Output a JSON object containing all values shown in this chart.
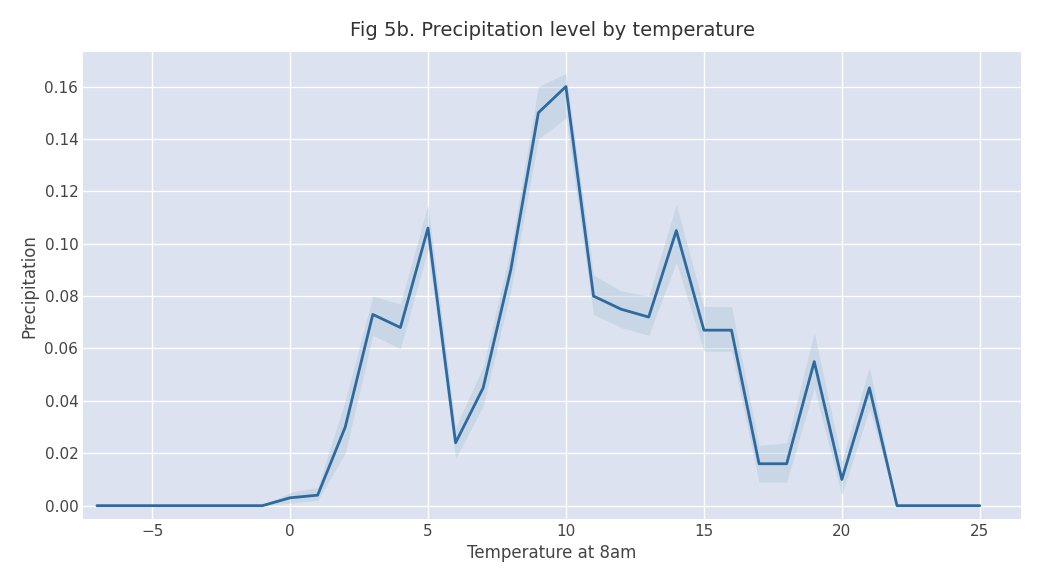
{
  "title": "Fig 5b. Precipitation level by temperature",
  "xlabel": "Temperature at 8am",
  "ylabel": "Precipitation",
  "figure_bg": "#ffffff",
  "axes_bg": "#dce2ef",
  "line_color": "#2d6a9f",
  "fill_color": "#aec6d8",
  "x": [
    -7,
    -6,
    -5,
    -4,
    -3,
    -2,
    -1,
    0,
    1,
    2,
    3,
    4,
    5,
    6,
    7,
    8,
    9,
    10,
    11,
    12,
    13,
    14,
    15,
    16,
    17,
    18,
    19,
    20,
    21,
    22,
    23,
    24,
    25
  ],
  "y": [
    0.0,
    0.0,
    0.0,
    0.0,
    0.0,
    0.0,
    0.0,
    0.003,
    0.004,
    0.03,
    0.073,
    0.068,
    0.106,
    0.024,
    0.045,
    0.09,
    0.15,
    0.16,
    0.08,
    0.075,
    0.072,
    0.105,
    0.067,
    0.067,
    0.016,
    0.016,
    0.055,
    0.01,
    0.045,
    0.0,
    0.0,
    0.0,
    0.0
  ],
  "y_lower": [
    0.0,
    0.0,
    0.0,
    0.0,
    0.0,
    0.0,
    0.0,
    0.001,
    0.002,
    0.02,
    0.065,
    0.06,
    0.098,
    0.018,
    0.038,
    0.082,
    0.14,
    0.148,
    0.073,
    0.068,
    0.065,
    0.093,
    0.059,
    0.059,
    0.009,
    0.009,
    0.045,
    0.004,
    0.037,
    0.0,
    0.0,
    0.0,
    0.0
  ],
  "y_upper": [
    0.0,
    0.0,
    0.0,
    0.0,
    0.0,
    0.0,
    0.0,
    0.005,
    0.007,
    0.04,
    0.08,
    0.077,
    0.115,
    0.03,
    0.053,
    0.098,
    0.16,
    0.165,
    0.088,
    0.082,
    0.08,
    0.115,
    0.076,
    0.076,
    0.023,
    0.024,
    0.066,
    0.017,
    0.053,
    0.0,
    0.0,
    0.0,
    0.0
  ],
  "xlim": [
    -7.5,
    26.5
  ],
  "ylim": [
    -0.005,
    0.173
  ],
  "xticks": [
    -5,
    0,
    5,
    10,
    15,
    20,
    25
  ],
  "yticks": [
    0.0,
    0.02,
    0.04,
    0.06,
    0.08,
    0.1,
    0.12,
    0.14,
    0.16
  ],
  "title_fontsize": 14,
  "label_fontsize": 12,
  "tick_fontsize": 11,
  "grid_color": "#ffffff",
  "grid_linewidth": 1.0,
  "line_width": 2.0,
  "fill_alpha": 0.4
}
